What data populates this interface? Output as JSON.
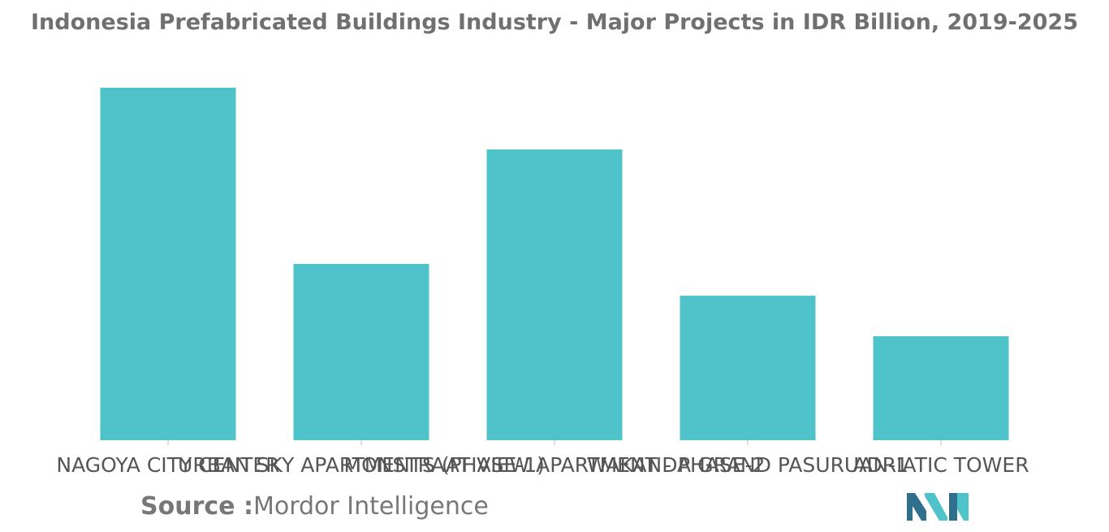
{
  "title": "Indonesia Prefabricated Buildings Industry - Major Projects in IDR Billion, 2019-2025",
  "source": {
    "label": "Source :",
    "value": "Mordor Intelligence"
  },
  "colors": {
    "bar": "#4FC3CA",
    "logo_dark": "#2E6F8E",
    "logo_light": "#4FC3CA"
  },
  "logo_icon": "mordor-intelligence-logo",
  "chart_data": {
    "type": "bar",
    "title": "Indonesia Prefabricated Buildings Industry - Major Projects in IDR Billion, 2019-2025",
    "categories": [
      "NAGOYA CITY CENTER",
      "URBAN SKY APARTMENTS (PHASE-1)",
      "MONSTRAAT VIEW APARTMENT - PHASE-2",
      "WAKANDA GRAND PASURUAN-1",
      "ADRIATIC TOWER"
    ],
    "values": [
      1000,
      500,
      825,
      410,
      295
    ],
    "ylim": [
      0,
      1000
    ],
    "xlabel": "",
    "ylabel": "",
    "grid": false,
    "legend": "none"
  }
}
